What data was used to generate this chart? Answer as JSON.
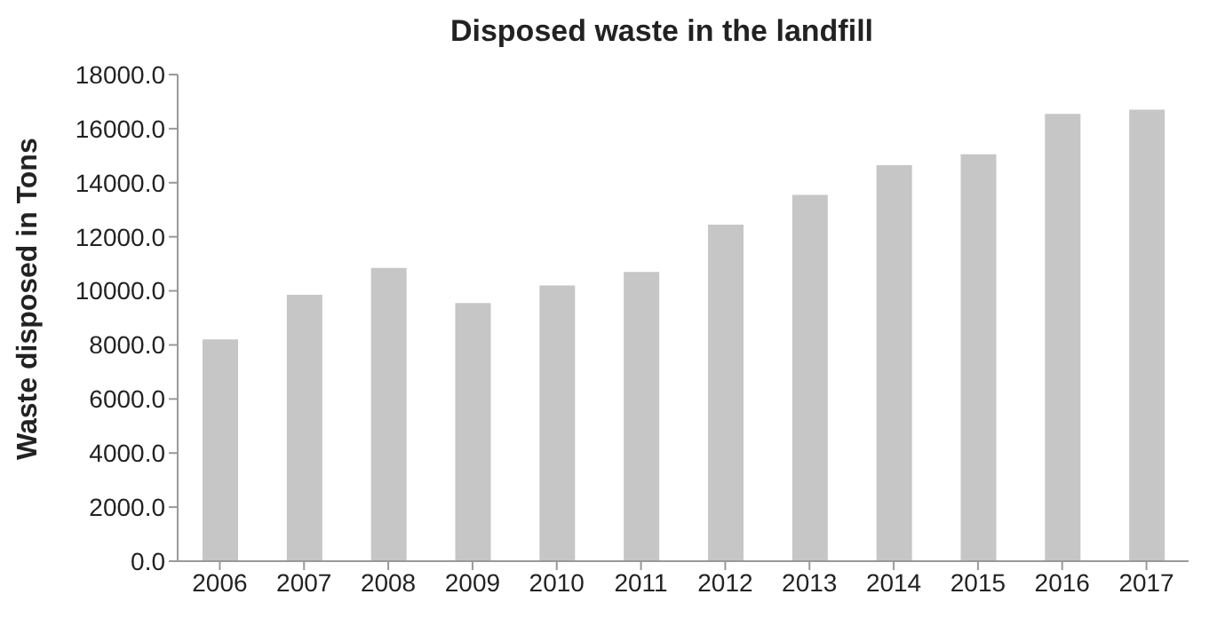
{
  "chart_data": {
    "type": "bar",
    "title": "Disposed waste in the landfill",
    "ylabel": "Waste disposed in Tons",
    "categories": [
      "2006",
      "2007",
      "2008",
      "2009",
      "2010",
      "2011",
      "2012",
      "2013",
      "2014",
      "2015",
      "2016",
      "2017"
    ],
    "values": [
      8200,
      9850,
      10850,
      9550,
      10200,
      10700,
      12450,
      13550,
      14650,
      15050,
      16550,
      16700
    ],
    "color": "#c6c6c6",
    "ylim": [
      0,
      18000
    ],
    "yticks": [
      {
        "value": 0,
        "label": "0.0"
      },
      {
        "value": 2000,
        "label": "2000.0"
      },
      {
        "value": 4000,
        "label": "4000.0"
      },
      {
        "value": 6000,
        "label": "6000.0"
      },
      {
        "value": 8000,
        "label": "8000.0"
      },
      {
        "value": 10000,
        "label": "10000.0"
      },
      {
        "value": 12000,
        "label": "12000.0"
      },
      {
        "value": 14000,
        "label": "14000.0"
      },
      {
        "value": 16000,
        "label": "16000.0"
      },
      {
        "value": 18000,
        "label": "18000.0"
      }
    ],
    "grid": false
  }
}
